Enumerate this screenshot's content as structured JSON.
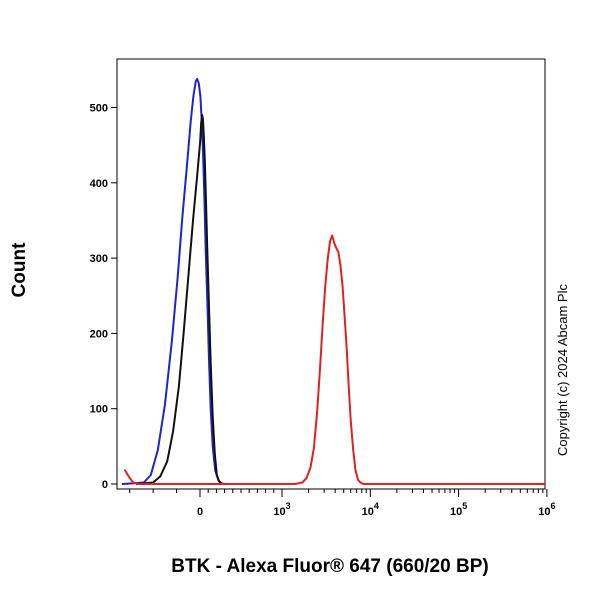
{
  "chart_data": {
    "type": "line",
    "xlabel": "BTK - Alexa Fluor® 647 (660/20 BP)",
    "ylabel": "Count",
    "xscale": "biexponential",
    "ylim": [
      0,
      560
    ],
    "yticks": [
      0,
      100,
      200,
      300,
      400,
      500
    ],
    "xticks": [
      {
        "value": 0,
        "label": "0"
      },
      {
        "value": 1000,
        "label": "10",
        "exponent": "3"
      },
      {
        "value": 10000,
        "label": "10",
        "exponent": "4"
      },
      {
        "value": 100000,
        "label": "10",
        "exponent": "5"
      },
      {
        "value": 1000000,
        "label": "10",
        "exponent": "6"
      }
    ],
    "grid": false,
    "legend": "none",
    "annotation": "Copyright (c) 2024 Abcam Plc",
    "series": [
      {
        "color": "#2222cc",
        "points": [
          [
            -330,
            0
          ],
          [
            -240,
            2
          ],
          [
            -210,
            12
          ],
          [
            -180,
            45
          ],
          [
            -150,
            105
          ],
          [
            -120,
            190
          ],
          [
            -95,
            275
          ],
          [
            -75,
            355
          ],
          [
            -55,
            425
          ],
          [
            -40,
            480
          ],
          [
            -28,
            515
          ],
          [
            -18,
            535
          ],
          [
            -12,
            538
          ],
          [
            -5,
            532
          ],
          [
            5,
            515
          ],
          [
            15,
            495
          ],
          [
            25,
            475
          ],
          [
            40,
            430
          ],
          [
            55,
            375
          ],
          [
            70,
            310
          ],
          [
            90,
            240
          ],
          [
            110,
            165
          ],
          [
            130,
            100
          ],
          [
            155,
            50
          ],
          [
            185,
            18
          ],
          [
            225,
            5
          ],
          [
            260,
            1
          ],
          [
            300,
            0
          ]
        ]
      },
      {
        "color": "#111111",
        "points": [
          [
            -270,
            0
          ],
          [
            -200,
            2
          ],
          [
            -170,
            10
          ],
          [
            -140,
            30
          ],
          [
            -115,
            70
          ],
          [
            -90,
            130
          ],
          [
            -70,
            200
          ],
          [
            -50,
            275
          ],
          [
            -30,
            350
          ],
          [
            -12,
            410
          ],
          [
            2,
            455
          ],
          [
            15,
            480
          ],
          [
            25,
            490
          ],
          [
            35,
            485
          ],
          [
            45,
            465
          ],
          [
            58,
            430
          ],
          [
            72,
            380
          ],
          [
            88,
            315
          ],
          [
            108,
            240
          ],
          [
            130,
            160
          ],
          [
            155,
            90
          ],
          [
            180,
            40
          ],
          [
            205,
            12
          ],
          [
            235,
            3
          ],
          [
            265,
            0
          ]
        ]
      },
      {
        "color": "#dd2222",
        "points": [
          [
            -320,
            18
          ],
          [
            -300,
            8
          ],
          [
            -285,
            2
          ],
          [
            -260,
            0
          ],
          [
            1400,
            0
          ],
          [
            1700,
            2
          ],
          [
            1900,
            8
          ],
          [
            2100,
            22
          ],
          [
            2300,
            48
          ],
          [
            2500,
            95
          ],
          [
            2700,
            155
          ],
          [
            2900,
            215
          ],
          [
            3100,
            265
          ],
          [
            3300,
            300
          ],
          [
            3500,
            322
          ],
          [
            3700,
            330
          ],
          [
            3900,
            320
          ],
          [
            4100,
            314
          ],
          [
            4350,
            308
          ],
          [
            4600,
            290
          ],
          [
            4850,
            262
          ],
          [
            5100,
            225
          ],
          [
            5400,
            180
          ],
          [
            5700,
            130
          ],
          [
            6000,
            85
          ],
          [
            6400,
            45
          ],
          [
            6800,
            18
          ],
          [
            7300,
            5
          ],
          [
            7900,
            1
          ],
          [
            8500,
            0
          ],
          [
            1000000,
            0
          ]
        ]
      }
    ]
  }
}
